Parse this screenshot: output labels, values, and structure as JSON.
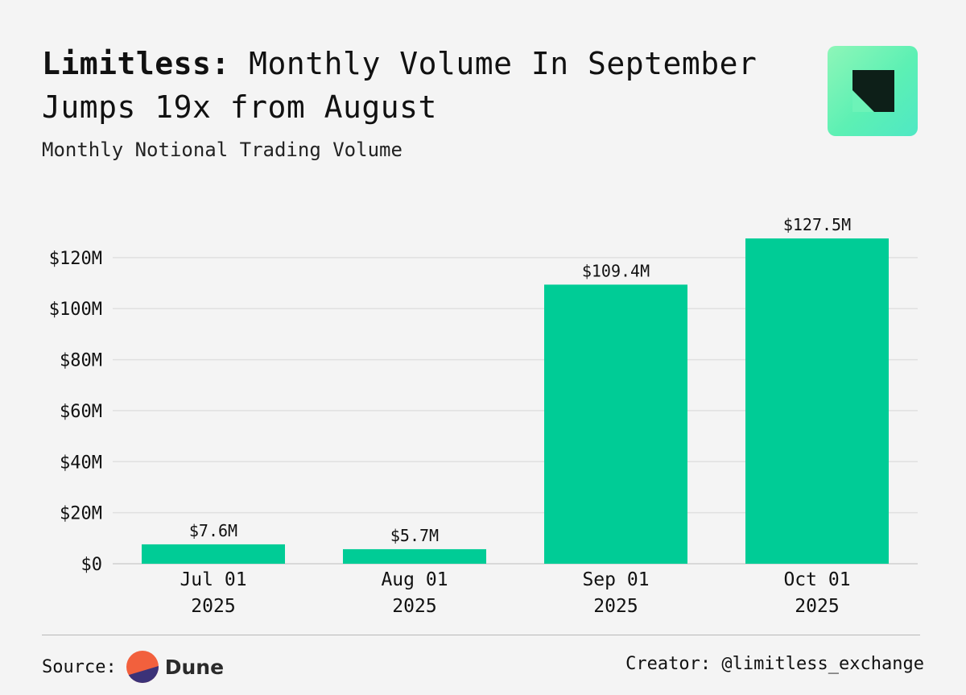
{
  "header": {
    "title_bold": "Limitless:",
    "title_rest": "Monthly Volume In September Jumps 19x from August",
    "subtitle": "Monthly Notional Trading Volume"
  },
  "colors": {
    "bar": "#00cc96",
    "grid": "#e0e0e0",
    "background": "#f4f4f4",
    "text": "#111111"
  },
  "chart_data": {
    "type": "bar",
    "title": "Limitless: Monthly Volume In September Jumps 19x from August",
    "subtitle": "Monthly Notional Trading Volume",
    "categories": [
      [
        "Jul 01",
        "2025"
      ],
      [
        "Aug 01",
        "2025"
      ],
      [
        "Sep 01",
        "2025"
      ],
      [
        "Oct 01",
        "2025"
      ]
    ],
    "values": [
      7.6,
      5.7,
      109.4,
      127.5
    ],
    "value_labels": [
      "$7.6M",
      "$5.7M",
      "$109.4M",
      "$127.5M"
    ],
    "unit": "millions USD",
    "yticks": [
      0,
      20,
      40,
      60,
      80,
      100,
      120
    ],
    "ytick_labels": [
      "$0",
      "$20M",
      "$40M",
      "$60M",
      "$80M",
      "$100M",
      "$120M"
    ],
    "ylim": [
      0,
      131
    ],
    "xlabel": "",
    "ylabel": "",
    "grid": true,
    "legend": "none"
  },
  "footer": {
    "source_label": "Source:",
    "source_name": "Dune",
    "creator": "Creator: @limitless_exchange"
  }
}
